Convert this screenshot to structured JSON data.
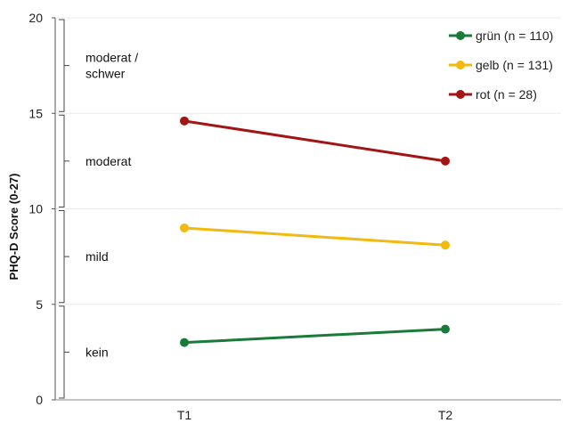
{
  "chart_data": {
    "type": "line",
    "title": "",
    "xlabel": "",
    "ylabel": "PHQ-D Score (0-27)",
    "x": [
      "T1",
      "T2"
    ],
    "ylim": [
      0,
      20
    ],
    "yticks": [
      "0",
      "5",
      "10",
      "15",
      "20"
    ],
    "grid": true,
    "legend_position": "top-right",
    "series": [
      {
        "name": "grün (n = 110)",
        "color": "#1a7a3a",
        "values": [
          3.0,
          3.7
        ]
      },
      {
        "name": "gelb (n = 131)",
        "color": "#f2b90f",
        "values": [
          9.0,
          8.1
        ]
      },
      {
        "name": "rot (n = 28)",
        "color": "#a31515",
        "values": [
          14.6,
          12.5
        ]
      }
    ],
    "severity_bands": [
      {
        "label_lines": [
          "kein"
        ],
        "from": 0,
        "to": 5
      },
      {
        "label_lines": [
          "mild"
        ],
        "from": 5,
        "to": 10
      },
      {
        "label_lines": [
          "moderat"
        ],
        "from": 10,
        "to": 15
      },
      {
        "label_lines": [
          "moderat /",
          "schwer"
        ],
        "from": 15,
        "to": 20
      }
    ]
  }
}
